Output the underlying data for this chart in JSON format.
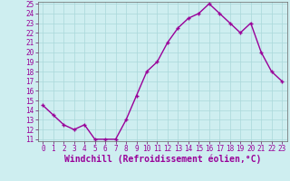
{
  "x": [
    0,
    1,
    2,
    3,
    4,
    5,
    6,
    7,
    8,
    9,
    10,
    11,
    12,
    13,
    14,
    15,
    16,
    17,
    18,
    19,
    20,
    21,
    22,
    23
  ],
  "y": [
    14.5,
    13.5,
    12.5,
    12,
    12.5,
    11,
    11,
    11,
    13,
    15.5,
    18,
    19,
    21,
    22.5,
    23.5,
    24,
    25,
    24,
    23,
    22,
    23,
    20,
    18,
    17
  ],
  "line_color": "#990099",
  "marker_color": "#990099",
  "bg_color": "#ceeef0",
  "grid_color": "#aad8da",
  "xlabel": "Windchill (Refroidissement éolien,°C)",
  "ylim": [
    11,
    25
  ],
  "xlim": [
    -0.5,
    23.5
  ],
  "yticks": [
    11,
    12,
    13,
    14,
    15,
    16,
    17,
    18,
    19,
    20,
    21,
    22,
    23,
    24,
    25
  ],
  "xticks": [
    0,
    1,
    2,
    3,
    4,
    5,
    6,
    7,
    8,
    9,
    10,
    11,
    12,
    13,
    14,
    15,
    16,
    17,
    18,
    19,
    20,
    21,
    22,
    23
  ],
  "xlabel_fontsize": 7,
  "tick_fontsize": 5.5,
  "marker_size": 2.5,
  "line_width": 1.0
}
